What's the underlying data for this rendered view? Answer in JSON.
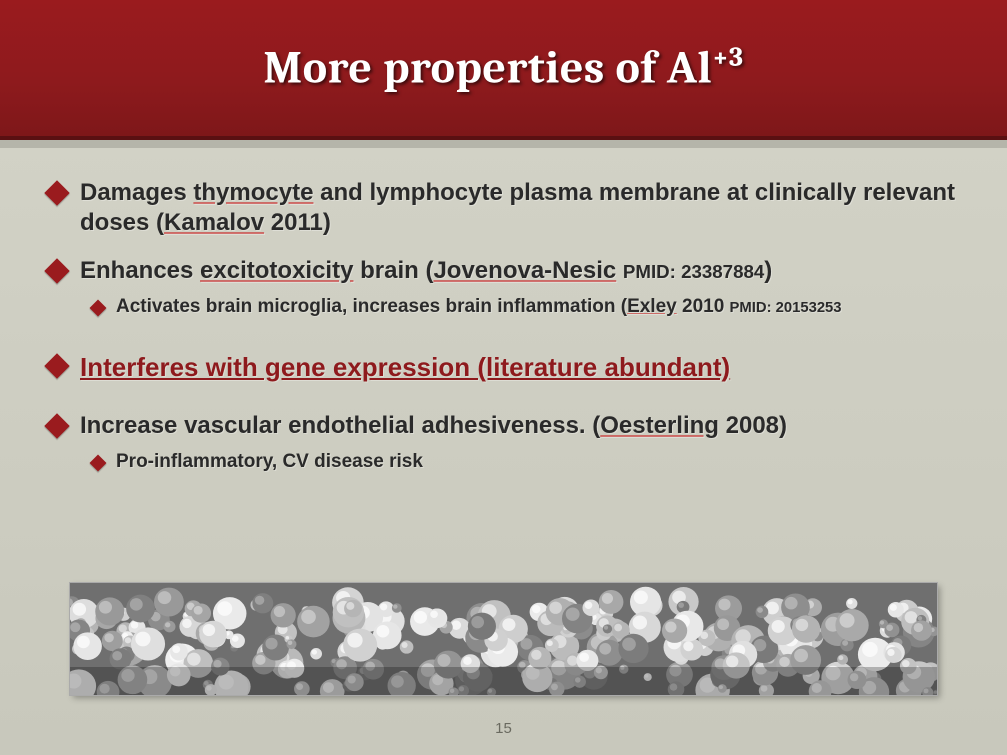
{
  "title": {
    "prefix": "More properties of Al",
    "superscript": "+3"
  },
  "bullets": [
    {
      "level": 1,
      "style": "normal",
      "segments": [
        {
          "t": "Damages "
        },
        {
          "t": "thymocyte",
          "u": true
        },
        {
          "t": " and lymphocyte plasma membrane at clinically relevant doses ("
        },
        {
          "t": "Kamalov",
          "u": true
        },
        {
          "t": " 2011)"
        }
      ]
    },
    {
      "level": 1,
      "style": "normal",
      "segments": [
        {
          "t": "Enhances "
        },
        {
          "t": "excitotoxicity",
          "u": true
        },
        {
          "t": " brain ("
        },
        {
          "t": "Jovenova-Nesic",
          "u": true
        },
        {
          "t": " "
        },
        {
          "t": "PMID: 23387884",
          "pmid": true
        },
        {
          "t": ")"
        }
      ]
    },
    {
      "level": 2,
      "style": "small",
      "segments": [
        {
          "t": "Activates brain microglia, increases brain inflammation ("
        },
        {
          "t": "Exley",
          "u": true
        },
        {
          "t": " 2010 "
        },
        {
          "t": "PMID: 20153253",
          "pmid": true
        }
      ]
    },
    {
      "level": 1,
      "style": "emph",
      "segments": [
        {
          "t": "Interferes with gene expression (literature abundant)"
        }
      ]
    },
    {
      "level": 1,
      "style": "normal",
      "segments": [
        {
          "t": "Increase vascular endothelial adhesiveness. ("
        },
        {
          "t": "Oesterling",
          "u": true
        },
        {
          "t": " 2008)"
        }
      ]
    },
    {
      "level": 2,
      "style": "small",
      "segments": [
        {
          "t": "Pro-inflammatory, CV disease risk"
        }
      ]
    }
  ],
  "page_number": "15",
  "colors": {
    "title_bg_top": "#9a1b1e",
    "title_bg_bottom": "#7e1719",
    "bullet_diamond": "#9a1b1e",
    "body_bg_top": "#d4d4c8",
    "body_bg_bottom": "#c8c8bc",
    "emph_text": "#8e1a1d",
    "body_text": "#2a2a2a"
  },
  "image_strip": {
    "description": "grayscale SEM micrograph of clustered nanoparticles",
    "bg": "#6f6f6f",
    "blob_fill": "#cfcfcf",
    "blob_shadow": "#3a3a3a"
  }
}
